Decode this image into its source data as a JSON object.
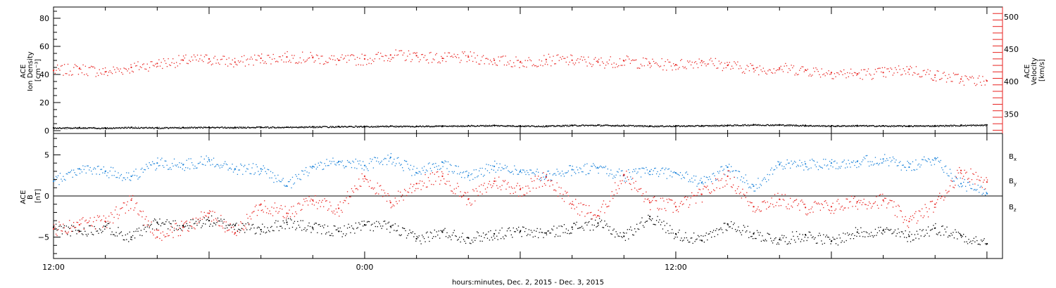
{
  "xlabel": "hours:minutes, Dec.  2, 2015 - Dec.  3, 2015",
  "x_ticks": [
    "12:00",
    "0:00",
    "12:00"
  ],
  "colors": {
    "black": "#000000",
    "blue": "#1a82d9",
    "red": "#e8221f"
  },
  "chart_data": [
    {
      "type": "scatter",
      "panel": "top",
      "ylabel_left": [
        "ACE",
        "Ion Density",
        "[cm⁻³]"
      ],
      "ylabel_right": [
        "ACE",
        "Velocity",
        "[km/s]"
      ],
      "x_unit": "hours since Dec. 2 12:00",
      "xlim": [
        0,
        36.6
      ],
      "ylim_left": [
        -2,
        88
      ],
      "yticks_left": [
        "0",
        "20",
        "40",
        "60",
        "80"
      ],
      "ylim_right": [
        320,
        515
      ],
      "yticks_right": [
        "350",
        "400",
        "450",
        "500"
      ],
      "series": [
        {
          "name": "Ion Density",
          "axis": "left",
          "color": "black",
          "x": [
            0,
            1,
            2,
            3,
            4,
            5,
            6,
            7,
            8,
            9,
            10,
            11,
            12,
            13,
            14,
            15,
            16,
            17,
            18,
            19,
            20,
            21,
            22,
            23,
            24,
            25,
            26,
            27,
            28,
            29,
            30,
            31,
            32,
            33,
            34,
            35,
            36
          ],
          "y": [
            2,
            2.2,
            2,
            2.4,
            2.2,
            2.3,
            2.5,
            2.4,
            2.6,
            2.5,
            2.8,
            3,
            3.1,
            3.3,
            3.2,
            3.4,
            3.6,
            3.8,
            3.5,
            3.4,
            3.9,
            4,
            3.8,
            3.4,
            3.5,
            3.6,
            3.9,
            4.3,
            4.2,
            3.8,
            3.5,
            3.7,
            3.5,
            3.5,
            3.6,
            3.9,
            4.1
          ]
        },
        {
          "name": "Velocity",
          "axis": "right",
          "color": "red",
          "x": [
            0,
            1,
            2,
            3,
            4,
            5,
            6,
            7,
            8,
            9,
            10,
            11,
            12,
            13,
            14,
            15,
            16,
            17,
            18,
            19,
            20,
            21,
            22,
            23,
            24,
            25,
            26,
            27,
            28,
            29,
            30,
            31,
            32,
            33,
            34,
            35,
            36
          ],
          "y": [
            417,
            420,
            415,
            422,
            428,
            433,
            435,
            430,
            436,
            438,
            437,
            433,
            435,
            441,
            440,
            436,
            438,
            433,
            430,
            434,
            433,
            430,
            432,
            428,
            426,
            432,
            425,
            420,
            421,
            418,
            414,
            412,
            414,
            419,
            410,
            404,
            401
          ]
        }
      ]
    },
    {
      "type": "scatter",
      "panel": "bottom",
      "ylabel_left": [
        "ACE",
        "B",
        "[nT]"
      ],
      "x_unit": "hours since Dec. 2 12:00",
      "xlim": [
        0,
        36.6
      ],
      "ylim": [
        -7.6,
        7.6
      ],
      "yticks": [
        "-5",
        "0",
        "5"
      ],
      "zero_line": true,
      "legend": [
        "Bx",
        "By",
        "Bz"
      ],
      "series": [
        {
          "name": "Bx",
          "color": "black",
          "x": [
            0,
            1,
            2,
            3,
            4,
            5,
            6,
            7,
            8,
            9,
            10,
            11,
            12,
            13,
            14,
            15,
            16,
            17,
            18,
            19,
            20,
            21,
            22,
            23,
            24,
            25,
            26,
            27,
            28,
            29,
            30,
            31,
            32,
            33,
            34,
            35,
            36
          ],
          "y": [
            -3.8,
            -4.3,
            -3.7,
            -5,
            -3.2,
            -3.6,
            -3,
            -3.6,
            -4.1,
            -3.2,
            -3.9,
            -4.3,
            -3.5,
            -3.7,
            -5.2,
            -4.4,
            -5.1,
            -4.6,
            -4.3,
            -4.5,
            -3.8,
            -3.3,
            -4.9,
            -2.5,
            -4.6,
            -5.4,
            -3.4,
            -4.6,
            -5.3,
            -4.7,
            -5.5,
            -4.4,
            -4.2,
            -4.9,
            -3.9,
            -4.8,
            -5.8
          ]
        },
        {
          "name": "By",
          "color": "blue",
          "x": [
            0,
            1,
            2,
            3,
            4,
            5,
            6,
            7,
            8,
            9,
            10,
            11,
            12,
            13,
            14,
            15,
            16,
            17,
            18,
            19,
            20,
            21,
            22,
            23,
            24,
            25,
            26,
            27,
            28,
            29,
            30,
            31,
            32,
            33,
            34,
            35,
            36
          ],
          "y": [
            1.8,
            3.3,
            3,
            2.4,
            4,
            3.8,
            4.4,
            3.3,
            3.3,
            1.2,
            3.6,
            4.2,
            3.7,
            4.7,
            2.8,
            4.1,
            2.5,
            3.6,
            3,
            2.4,
            3.2,
            3.4,
            2.5,
            3,
            2.8,
            1.6,
            3.5,
            1.2,
            3.8,
            3.9,
            4,
            4.2,
            4.5,
            3.5,
            4.6,
            1.5,
            0.3
          ]
        },
        {
          "name": "Bz",
          "color": "red",
          "x": [
            0,
            1,
            2,
            3,
            4,
            5,
            6,
            7,
            8,
            9,
            10,
            11,
            12,
            13,
            14,
            15,
            16,
            17,
            18,
            19,
            20,
            21,
            22,
            23,
            24,
            25,
            26,
            27,
            28,
            29,
            30,
            31,
            32,
            33,
            34,
            35,
            36
          ],
          "y": [
            -4,
            -3.5,
            -3.1,
            -0.5,
            -5,
            -3.8,
            -2.1,
            -4.5,
            -1,
            -2.1,
            -0.5,
            -1.5,
            2.4,
            -0.8,
            1.5,
            2.4,
            -0.4,
            1.8,
            0.8,
            2.3,
            -1,
            -2.4,
            2.6,
            -0.8,
            -1.3,
            0.2,
            2.4,
            -1.3,
            -0.4,
            -1.4,
            -1.3,
            -0.7,
            -0.5,
            -3.1,
            -1,
            3.1,
            1.7
          ]
        }
      ]
    }
  ]
}
